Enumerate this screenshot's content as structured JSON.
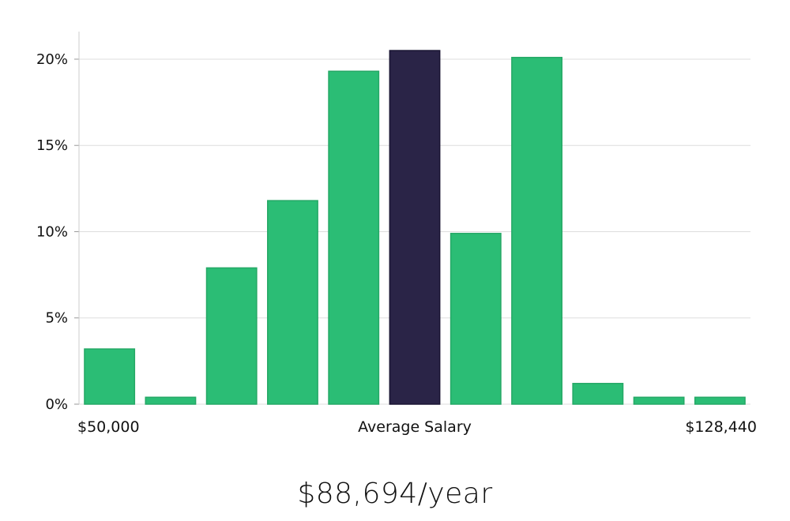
{
  "chart_data": {
    "type": "bar",
    "categories": [
      "1",
      "2",
      "3",
      "4",
      "5",
      "6",
      "7",
      "8",
      "9",
      "10",
      "11"
    ],
    "values": [
      3.2,
      0.4,
      7.9,
      11.8,
      19.3,
      20.5,
      9.9,
      20.1,
      1.2,
      0.4,
      0.4
    ],
    "highlight_index": 5,
    "ylim": [
      0,
      21.6
    ],
    "yticks": [
      0,
      5,
      10,
      15,
      20
    ],
    "ytick_labels": [
      "0%",
      "5%",
      "10%",
      "15%",
      "20%"
    ],
    "grid": true,
    "x_min_label": "$50,000",
    "x_center_label": "Average Salary",
    "x_max_label": "$128,440",
    "colors": {
      "bar": "#2bbd75",
      "highlight": "#2a2447",
      "grid": "#dddddd",
      "axis": "#cccccc"
    }
  },
  "salary_text": "$88,694/year"
}
